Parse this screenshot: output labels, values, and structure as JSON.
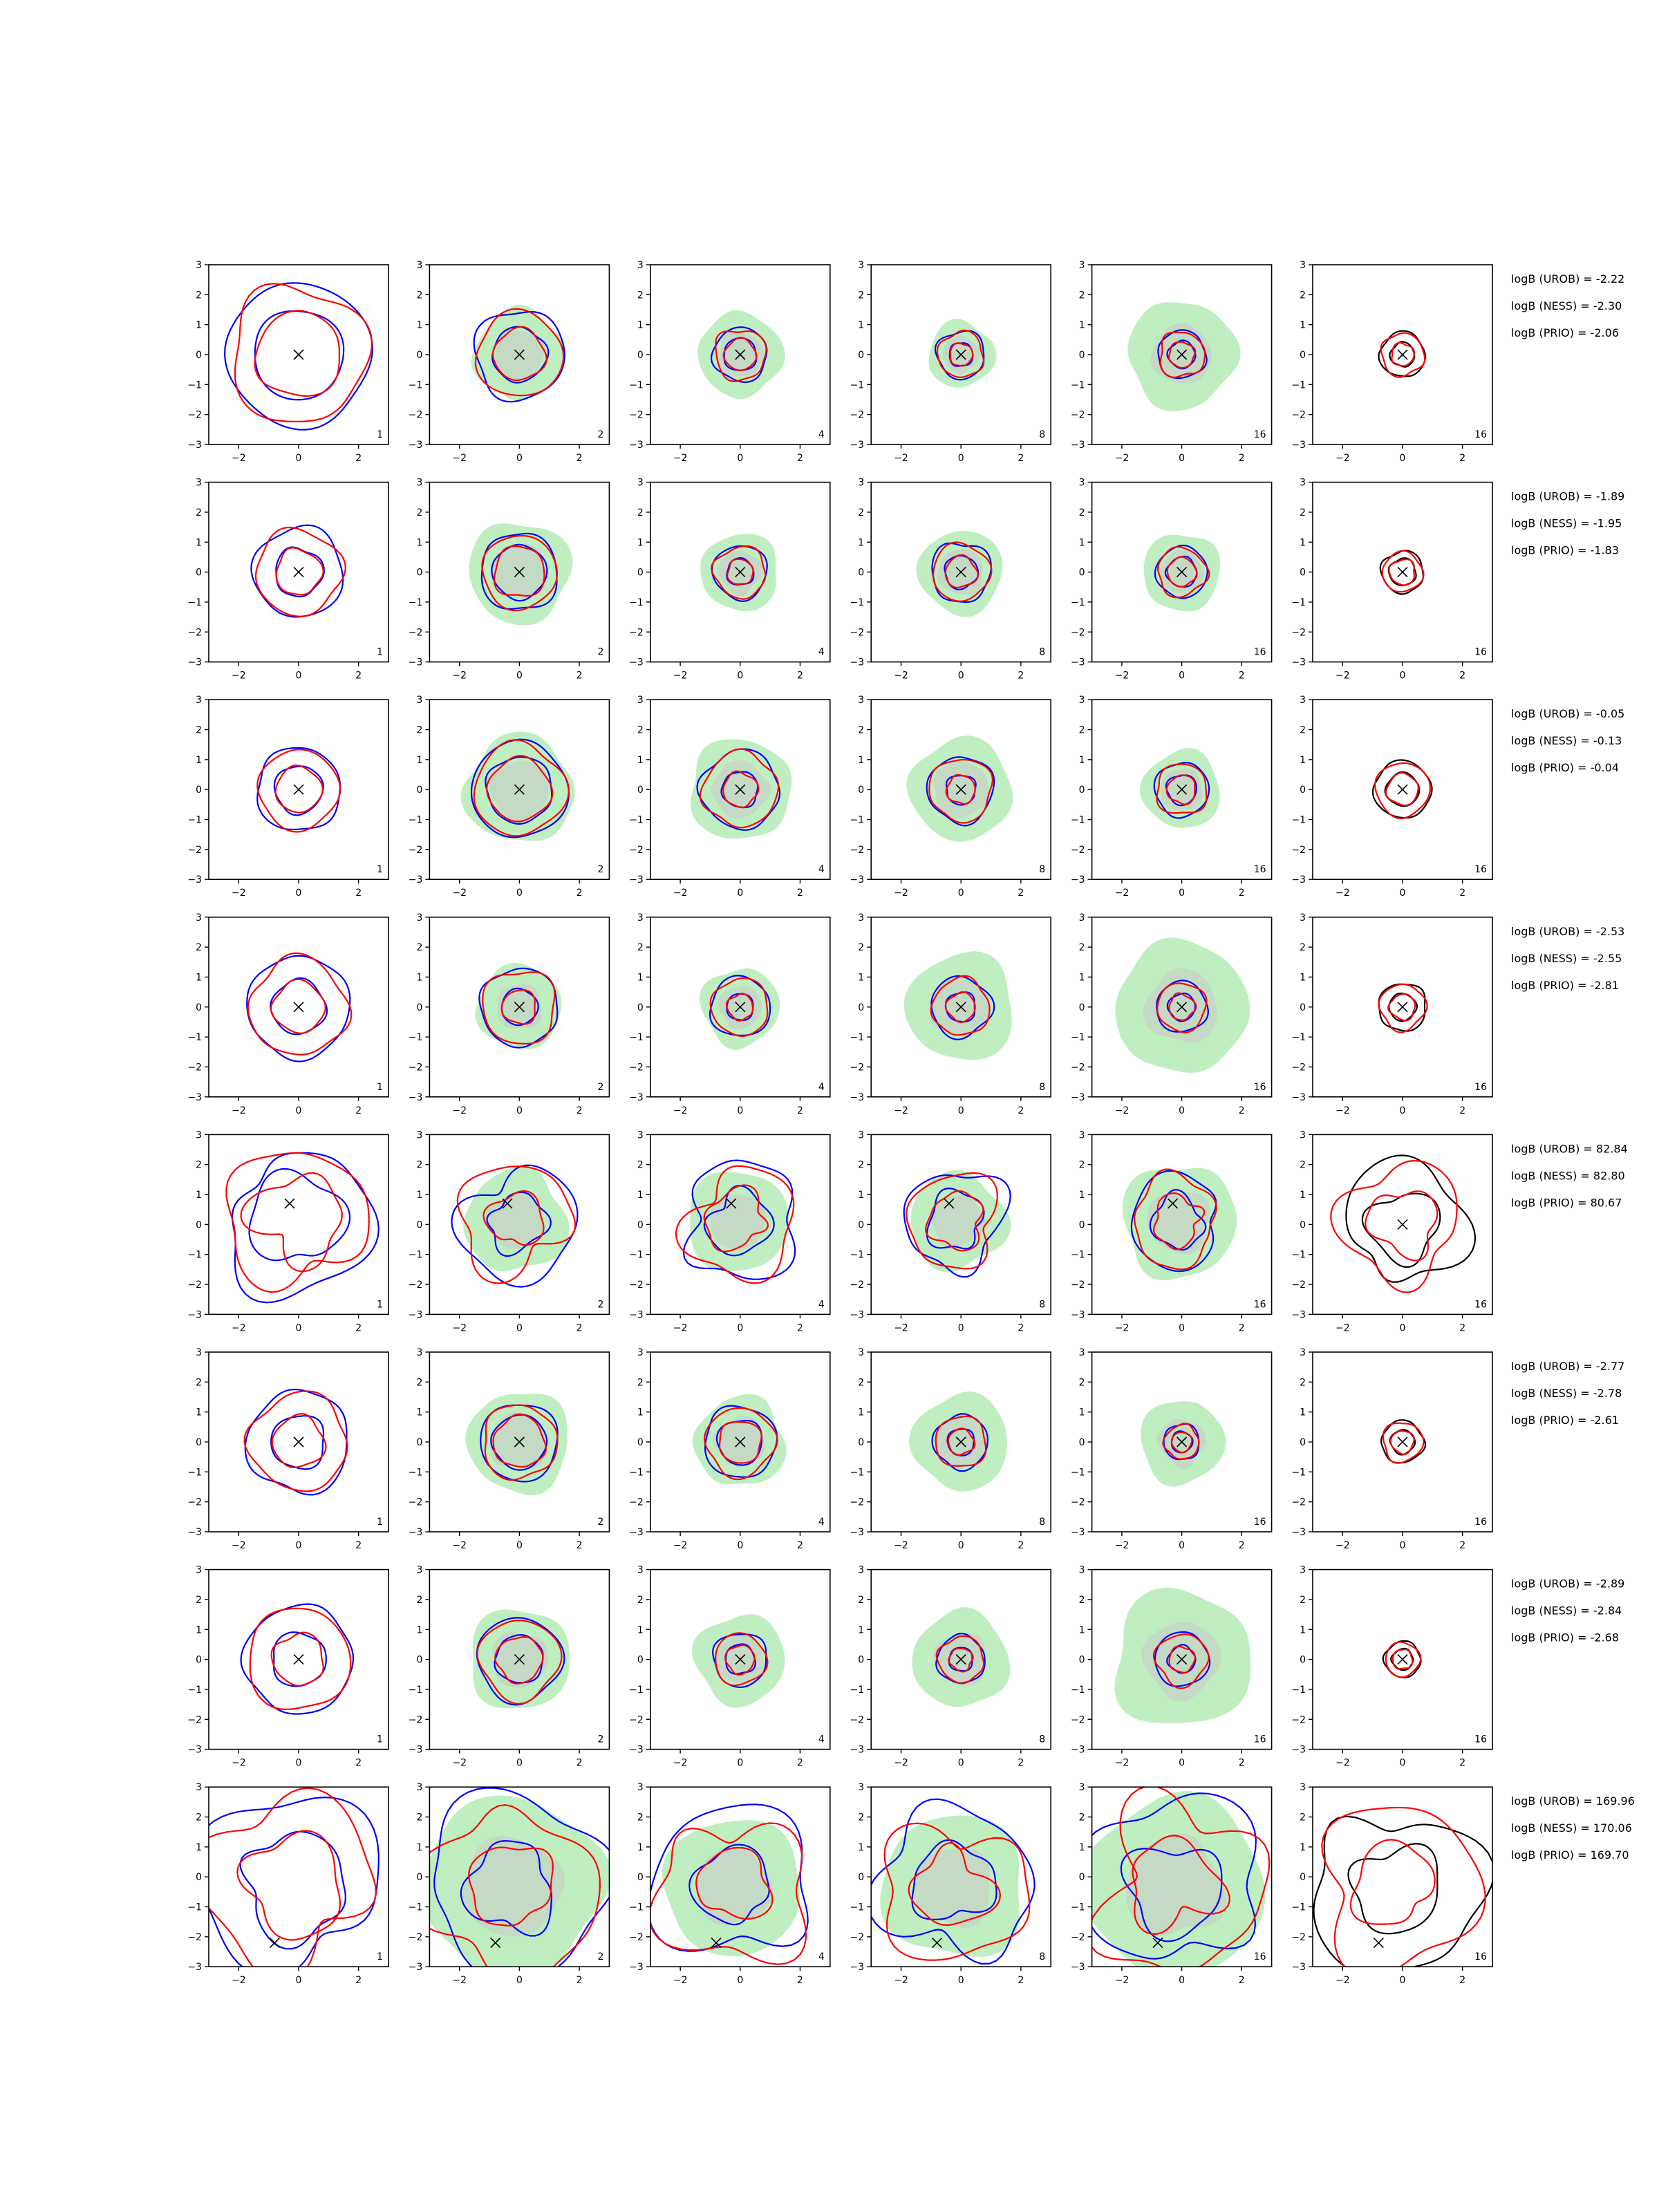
{
  "chart_data": {
    "type": "contour_grid",
    "rows": 8,
    "cols": 6,
    "xlim": [
      -3,
      3
    ],
    "ylim": [
      -3,
      3
    ],
    "xticks": [
      -2,
      0,
      2
    ],
    "yticks": [
      3,
      2,
      1,
      0,
      -1,
      -2,
      -3
    ],
    "xtick_labels": [
      "−2",
      "0",
      "2"
    ],
    "ytick_labels": [
      "3",
      "2",
      "1",
      "0",
      "−1",
      "−2",
      "−3"
    ],
    "column_labels": [
      "1",
      "2",
      "4",
      "8",
      "16",
      "16"
    ],
    "colors": {
      "series_a": "#0000ff",
      "series_b": "#ff0000",
      "reference": "#000000",
      "fill_outer": "#bfefc0",
      "fill_inner": "#c8c8c8"
    },
    "panels": [
      {
        "marker": [
          0,
          0
        ],
        "radii": [
          1.5,
          2.4
        ],
        "shaded": 0,
        "distorted": false
      },
      {
        "marker": [
          0,
          0
        ],
        "radii": [
          0.9,
          1.5
        ],
        "shaded": 1.5,
        "distorted": false
      },
      {
        "marker": [
          0,
          0
        ],
        "radii": [
          0.55,
          0.9
        ],
        "shaded": 1.4,
        "distorted": false
      },
      {
        "marker": [
          0,
          0
        ],
        "radii": [
          0.4,
          0.8
        ],
        "shaded": 1.1,
        "distorted": false
      },
      {
        "marker": [
          0,
          0
        ],
        "radii": [
          0.45,
          0.8
        ],
        "shaded": 1.8,
        "distorted": false
      },
      {
        "marker": [
          0,
          0
        ],
        "radii": [
          0.4,
          0.75
        ],
        "shaded": 0,
        "distorted": false
      },
      {
        "marker": [
          0,
          0
        ],
        "radii": [
          0.8,
          1.5
        ],
        "shaded": 0,
        "distorted": false
      },
      {
        "marker": [
          0,
          0
        ],
        "radii": [
          0.9,
          1.3
        ],
        "shaded": 1.7,
        "distorted": false
      },
      {
        "marker": [
          0,
          0
        ],
        "radii": [
          0.45,
          0.9
        ],
        "shaded": 1.3,
        "distorted": false
      },
      {
        "marker": [
          0,
          0
        ],
        "radii": [
          0.55,
          1.0
        ],
        "shaded": 1.4,
        "distorted": false
      },
      {
        "marker": [
          0,
          0
        ],
        "radii": [
          0.5,
          0.85
        ],
        "shaded": 1.3,
        "distorted": false
      },
      {
        "marker": [
          0,
          0
        ],
        "radii": [
          0.45,
          0.7
        ],
        "shaded": 0,
        "distorted": false
      },
      {
        "marker": [
          0,
          0
        ],
        "radii": [
          0.8,
          1.4
        ],
        "shaded": 0,
        "distorted": false
      },
      {
        "marker": [
          0,
          0
        ],
        "radii": [
          1.1,
          1.6
        ],
        "shaded": 1.8,
        "distorted": false
      },
      {
        "marker": [
          0,
          0
        ],
        "radii": [
          0.6,
          1.3
        ],
        "shaded": 1.7,
        "distorted": false
      },
      {
        "marker": [
          0,
          0
        ],
        "radii": [
          0.5,
          1.1
        ],
        "shaded": 1.7,
        "distorted": false
      },
      {
        "marker": [
          0,
          0
        ],
        "radii": [
          0.5,
          0.9
        ],
        "shaded": 1.3,
        "distorted": false
      },
      {
        "marker": [
          0,
          0
        ],
        "radii": [
          0.55,
          0.95
        ],
        "shaded": 0,
        "distorted": false
      },
      {
        "marker": [
          0,
          0
        ],
        "radii": [
          0.9,
          1.7
        ],
        "shaded": 0,
        "distorted": false
      },
      {
        "marker": [
          0,
          0
        ],
        "radii": [
          0.6,
          1.3
        ],
        "shaded": 1.4,
        "distorted": false
      },
      {
        "marker": [
          0,
          0
        ],
        "radii": [
          0.45,
          1.0
        ],
        "shaded": 1.3,
        "distorted": false
      },
      {
        "marker": [
          0,
          0
        ],
        "radii": [
          0.5,
          1.0
        ],
        "shaded": 1.8,
        "distorted": false
      },
      {
        "marker": [
          0,
          0
        ],
        "radii": [
          0.45,
          0.85
        ],
        "shaded": 2.2,
        "distorted": false
      },
      {
        "marker": [
          0,
          0
        ],
        "radii": [
          0.45,
          0.8
        ],
        "shaded": 0,
        "distorted": false
      },
      {
        "marker": [
          -0.3,
          0.7
        ],
        "radii": [
          1.6,
          2.5
        ],
        "shaded": 0,
        "distorted": true
      },
      {
        "marker": [
          -0.4,
          0.7
        ],
        "radii": [
          1.0,
          2.0
        ],
        "shaded": 1.7,
        "distorted": true
      },
      {
        "marker": [
          -0.3,
          0.7
        ],
        "radii": [
          1.1,
          2.0
        ],
        "shaded": 1.7,
        "distorted": true
      },
      {
        "marker": [
          -0.4,
          0.7
        ],
        "radii": [
          1.0,
          1.7
        ],
        "shaded": 1.6,
        "distorted": true
      },
      {
        "marker": [
          -0.3,
          0.7
        ],
        "radii": [
          0.9,
          1.6
        ],
        "shaded": 1.9,
        "distorted": true
      },
      {
        "marker": [
          0,
          0
        ],
        "radii": [
          1.2,
          2.1
        ],
        "shaded": 0,
        "distorted": true
      },
      {
        "marker": [
          0,
          0
        ],
        "radii": [
          0.9,
          1.7
        ],
        "shaded": 0,
        "distorted": false
      },
      {
        "marker": [
          0,
          0
        ],
        "radii": [
          0.9,
          1.3
        ],
        "shaded": 1.7,
        "distorted": false
      },
      {
        "marker": [
          0,
          0
        ],
        "radii": [
          0.75,
          1.2
        ],
        "shaded": 1.5,
        "distorted": false
      },
      {
        "marker": [
          0,
          0
        ],
        "radii": [
          0.45,
          0.9
        ],
        "shaded": 1.6,
        "distorted": false
      },
      {
        "marker": [
          0,
          0
        ],
        "radii": [
          0.35,
          0.6
        ],
        "shaded": 1.4,
        "distorted": false
      },
      {
        "marker": [
          0,
          0
        ],
        "radii": [
          0.4,
          0.7
        ],
        "shaded": 0,
        "distorted": false
      },
      {
        "marker": [
          0,
          0
        ],
        "radii": [
          0.9,
          1.8
        ],
        "shaded": 0,
        "distorted": false
      },
      {
        "marker": [
          0,
          0
        ],
        "radii": [
          0.8,
          1.4
        ],
        "shaded": 1.7,
        "distorted": false
      },
      {
        "marker": [
          0,
          0
        ],
        "radii": [
          0.5,
          0.9
        ],
        "shaded": 1.5,
        "distorted": false
      },
      {
        "marker": [
          0,
          0
        ],
        "radii": [
          0.4,
          0.8
        ],
        "shaded": 1.6,
        "distorted": false
      },
      {
        "marker": [
          0,
          0
        ],
        "radii": [
          0.45,
          0.9
        ],
        "shaded": 2.3,
        "distorted": false
      },
      {
        "marker": [
          0,
          0
        ],
        "radii": [
          0.35,
          0.6
        ],
        "shaded": 0,
        "distorted": false
      },
      {
        "marker": [
          -0.8,
          -2.2
        ],
        "radii": [
          1.8,
          3.1
        ],
        "shaded": 0,
        "distorted": true
      },
      {
        "marker": [
          -0.8,
          -2.2
        ],
        "radii": [
          1.5,
          3.1
        ],
        "shaded": 3.0,
        "distorted": true
      },
      {
        "marker": [
          -0.8,
          -2.2
        ],
        "radii": [
          1.3,
          2.7
        ],
        "shaded": 2.3,
        "distorted": true
      },
      {
        "marker": [
          -0.8,
          -2.2
        ],
        "radii": [
          1.4,
          2.6
        ],
        "shaded": 2.4,
        "distorted": true
      },
      {
        "marker": [
          -0.8,
          -2.2
        ],
        "radii": [
          1.6,
          3.0
        ],
        "shaded": 3.0,
        "distorted": true
      },
      {
        "marker": [
          -0.8,
          -2.2
        ],
        "radii": [
          1.5,
          2.9
        ],
        "shaded": 0,
        "distorted": true
      }
    ],
    "bayes_factors": [
      [
        "logB (UROB) = -2.22",
        "logB (NESS) = -2.30",
        "logB (PRIO) = -2.06"
      ],
      [
        "logB (UROB) = -1.89",
        "logB (NESS) = -1.95",
        "logB (PRIO) = -1.83"
      ],
      [
        "logB (UROB) = -0.05",
        "logB (NESS) = -0.13",
        "logB (PRIO) = -0.04"
      ],
      [
        "logB (UROB) = -2.53",
        "logB (NESS) = -2.55",
        "logB (PRIO) = -2.81"
      ],
      [
        "logB (UROB) = 82.84",
        "logB (NESS) = 82.80",
        "logB (PRIO) = 80.67"
      ],
      [
        "logB (UROB) = -2.77",
        "logB (NESS) = -2.78",
        "logB (PRIO) = -2.61"
      ],
      [
        "logB (UROB) = -2.89",
        "logB (NESS) = -2.84",
        "logB (PRIO) = -2.68"
      ],
      [
        "logB (UROB) = 169.96",
        "logB (NESS) = 170.06",
        "logB (PRIO) = 169.70"
      ]
    ]
  }
}
